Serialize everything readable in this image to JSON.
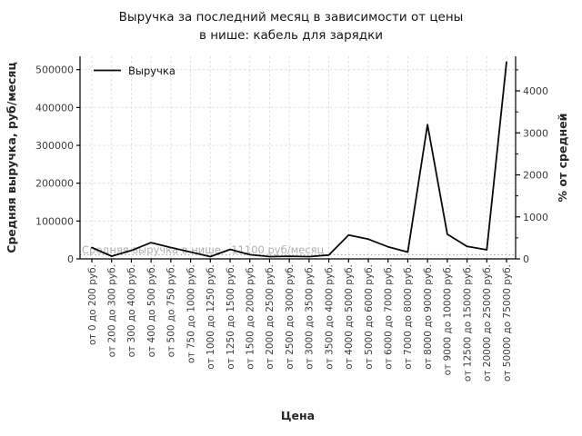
{
  "title": {
    "line1": "Выручка за последний месяц в зависимости от цены",
    "line2": "в нише: кабель для зарядки"
  },
  "chart_data": {
    "type": "line",
    "title": "Выручка за последний месяц в зависимости от цены в нише: кабель для зарядки",
    "x_label": "Цена",
    "y_left_label": "Средняя выручка, руб/месяц",
    "y_right_label": "% от средней",
    "legend_position": "top-left",
    "grid": true,
    "categories": [
      "от 0 до 200 руб.",
      "от 200 до 300 руб.",
      "от 300 до 400 руб.",
      "от 400 до 500 руб.",
      "от 500 до 750 руб.",
      "от 750 до 1000 руб.",
      "от 1000 до 1250 руб.",
      "от 1250 до 1500 руб.",
      "от 1500 до 2000 руб.",
      "от 2000 до 2500 руб.",
      "от 2500 до 3000 руб.",
      "от 3000 до 3500 руб.",
      "от 3500 до 4000 руб.",
      "от 4000 до 5000 руб.",
      "от 5000 до 6000 руб.",
      "от 6000 до 7000 руб.",
      "от 7000 до 8000 руб.",
      "от 8000 до 9000 руб.",
      "от 9000 до 10000 руб.",
      "от 12500 до 15000 руб.",
      "от 20000 до 25000 руб.",
      "от 50000 до 75000 руб."
    ],
    "series": [
      {
        "name": "Выручка",
        "values": [
          30000,
          7000,
          22000,
          43000,
          30000,
          18000,
          6000,
          25000,
          11000,
          6000,
          7000,
          6000,
          10000,
          63000,
          52000,
          32000,
          18000,
          355000,
          65000,
          33000,
          24000,
          520000
        ]
      }
    ],
    "average_line": {
      "value": 11100,
      "label": "Средняя выручка в нише - 11100 руб/месяц"
    },
    "y_left": {
      "ticks": [
        0,
        100000,
        200000,
        300000,
        400000,
        500000
      ],
      "min": 0,
      "max": 500000
    },
    "y_right": {
      "ticks": [
        0,
        1000,
        2000,
        3000,
        4000
      ],
      "minor_ticks": [
        500,
        1500,
        2500,
        3500,
        4500
      ],
      "rub_per_100_percent": 11100
    },
    "colors": {
      "line": "#0a0a0a",
      "grid": "#dcdcdc",
      "average_line": "#9a9a9a",
      "annotation_text": "#b0b0b0",
      "tick_text": "#3d3d3d",
      "axis_label_text": "#262626",
      "spine": "#000000"
    }
  }
}
